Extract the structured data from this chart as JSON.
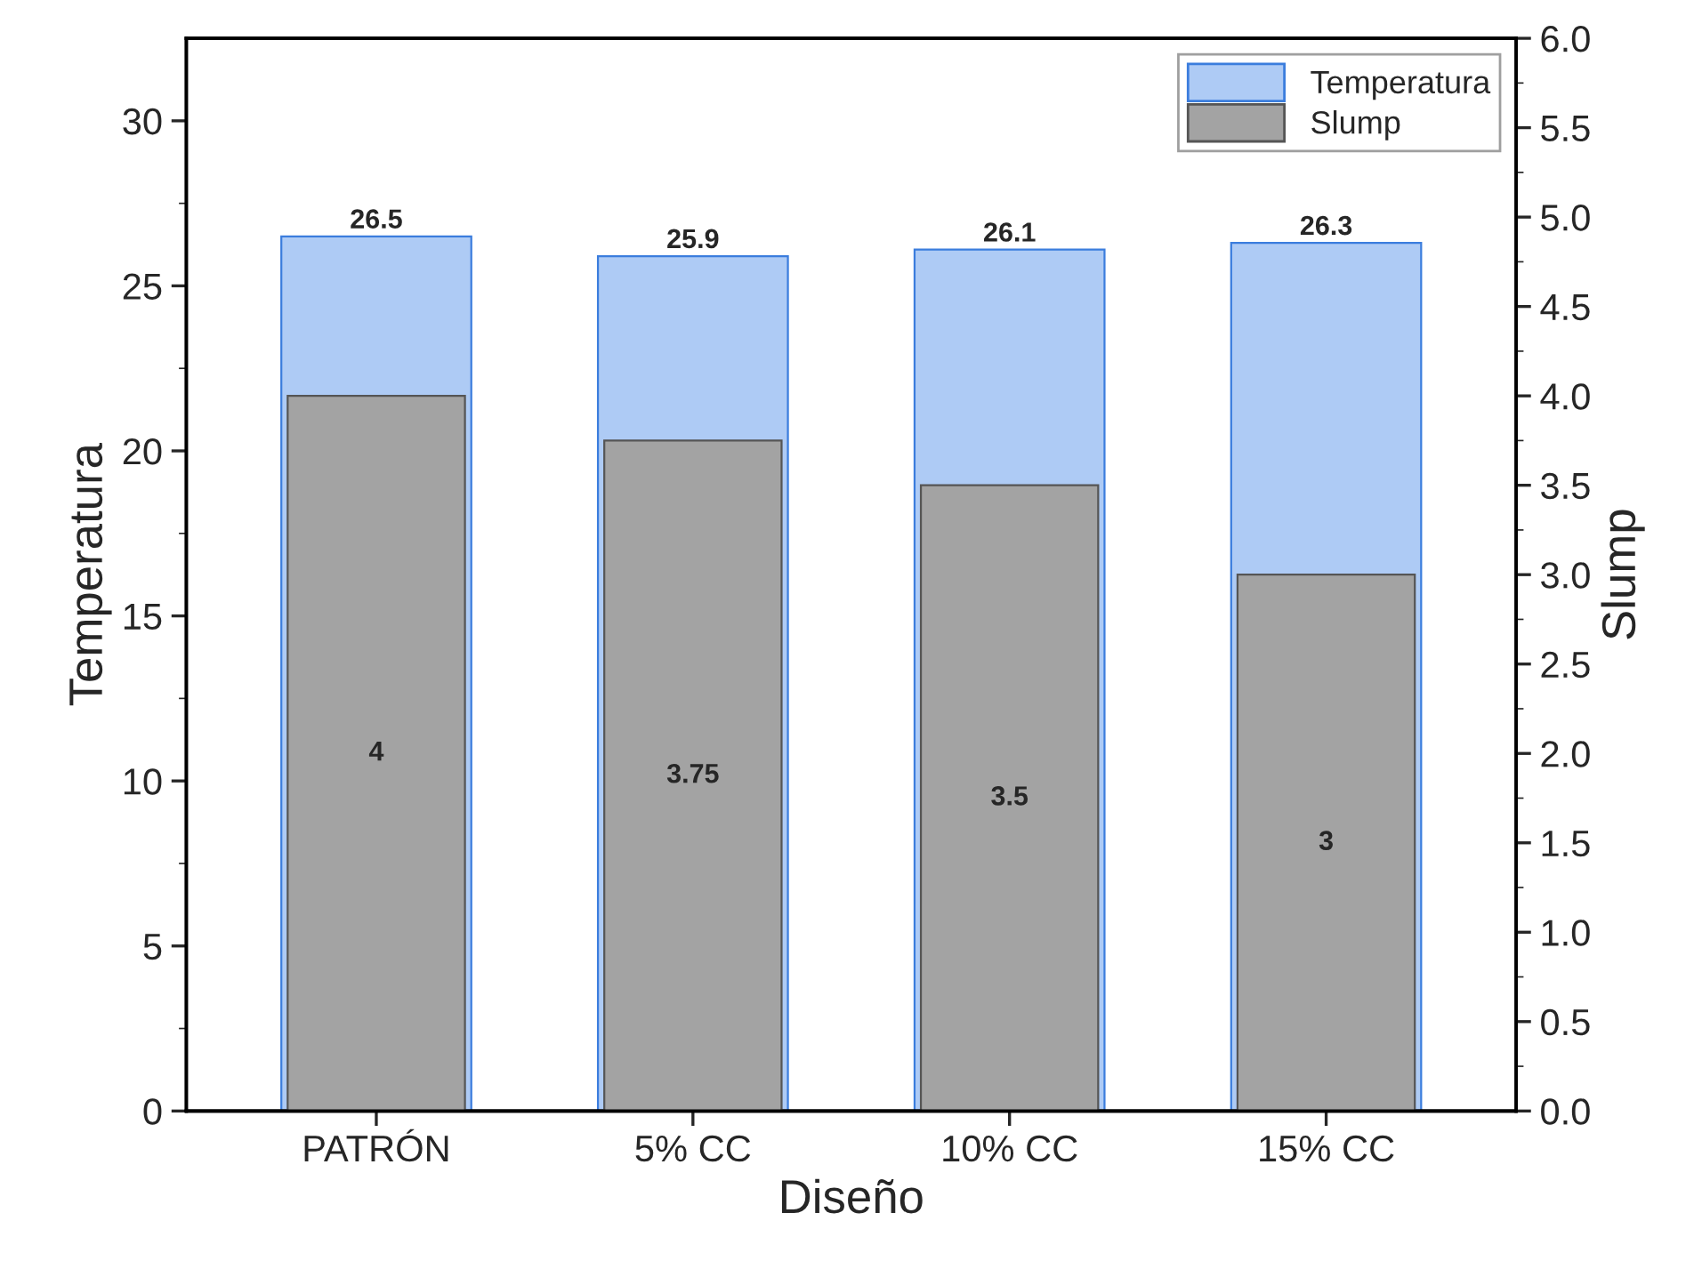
{
  "chart_data": {
    "type": "bar",
    "xlabel": "Diseño",
    "ylabel": "Temperatura",
    "y2label": "Slump",
    "categories": [
      "PATRÓN",
      "5% CC",
      "10% CC",
      "15% CC"
    ],
    "series": [
      {
        "name": "Temperatura",
        "color": "#aecbf5",
        "values": [
          26.5,
          25.9,
          26.1,
          26.3
        ]
      },
      {
        "name": "Slump",
        "color": "#a3a3a3",
        "axis": "y2",
        "values": [
          4,
          3.75,
          3.5,
          3
        ]
      }
    ],
    "ylim": [
      0,
      32.5
    ],
    "yticks": [
      0,
      5,
      10,
      15,
      20,
      25,
      30
    ],
    "y2lim": [
      0,
      6
    ],
    "y2ticks": [
      {
        "value": 0,
        "label": "0.0"
      },
      {
        "value": 0.5,
        "label": "0.5"
      },
      {
        "value": 1,
        "label": "1.0"
      },
      {
        "value": 1.5,
        "label": "1.5"
      },
      {
        "value": 2,
        "label": "2.0"
      },
      {
        "value": 2.5,
        "label": "2.5"
      },
      {
        "value": 3,
        "label": "3.0"
      },
      {
        "value": 3.5,
        "label": "3.5"
      },
      {
        "value": 4,
        "label": "4.0"
      },
      {
        "value": 4.5,
        "label": "4.5"
      },
      {
        "value": 5,
        "label": "5.0"
      },
      {
        "value": 5.5,
        "label": "5.5"
      },
      {
        "value": 6,
        "label": "6.0"
      }
    ],
    "data_labels": true,
    "legend": "top right",
    "grid": false
  }
}
